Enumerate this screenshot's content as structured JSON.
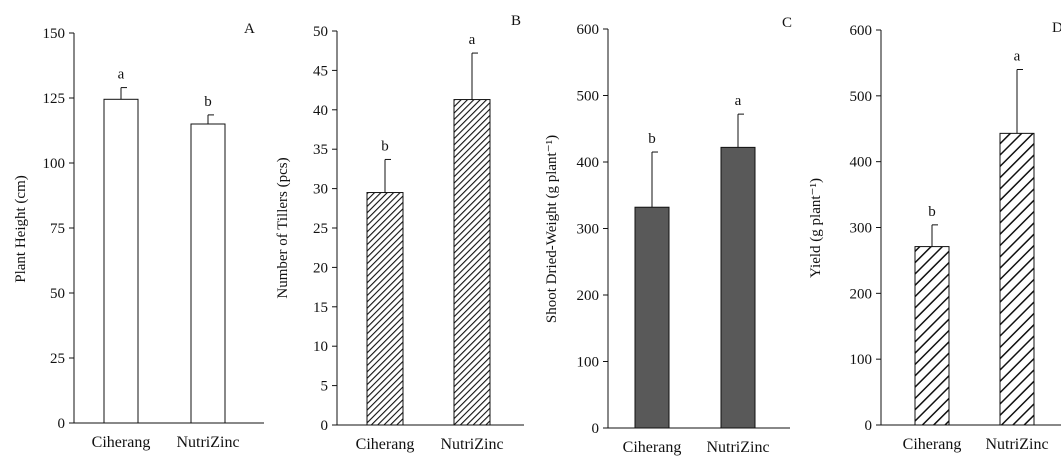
{
  "chart_data": [
    {
      "panel": "A",
      "type": "bar",
      "ylabel": "Plant Height (cm)",
      "categories": [
        "Ciherang",
        "NutriZinc"
      ],
      "values": [
        124.5,
        115
      ],
      "errors": [
        4.5,
        3.5
      ],
      "significance": [
        "a",
        "b"
      ],
      "ylim": [
        0,
        150
      ],
      "yticks": [
        0,
        25,
        50,
        75,
        100,
        125,
        150
      ],
      "style": "white",
      "grid": false
    },
    {
      "panel": "B",
      "type": "bar",
      "ylabel": "Number of Tillers (pcs)",
      "categories": [
        "Ciherang",
        "NutriZinc"
      ],
      "values": [
        29.5,
        41.3
      ],
      "errors": [
        4.2,
        5.9
      ],
      "significance": [
        "b",
        "a"
      ],
      "ylim": [
        0,
        50
      ],
      "yticks": [
        0,
        5,
        10,
        15,
        20,
        25,
        30,
        35,
        40,
        45,
        50
      ],
      "style": "dense-hatch",
      "grid": false
    },
    {
      "panel": "C",
      "type": "bar",
      "ylabel": "Shoot Dried-Weight (g plant⁻¹)",
      "categories": [
        "Ciherang",
        "NutriZinc"
      ],
      "values": [
        332,
        422
      ],
      "errors": [
        83,
        50
      ],
      "significance": [
        "b",
        "a"
      ],
      "ylim": [
        0,
        600
      ],
      "yticks": [
        0,
        100,
        200,
        300,
        400,
        500,
        600
      ],
      "style": "solid",
      "color": "#595959",
      "grid": false
    },
    {
      "panel": "D",
      "type": "bar",
      "ylabel": "Yield (g plant⁻¹)",
      "categories": [
        "Ciherang",
        "NutriZinc"
      ],
      "values": [
        271,
        443
      ],
      "errors": [
        33,
        97
      ],
      "significance": [
        "b",
        "a"
      ],
      "ylim": [
        0,
        600
      ],
      "yticks": [
        0,
        100,
        200,
        300,
        400,
        500,
        600
      ],
      "style": "wide-hatch",
      "grid": false
    }
  ]
}
